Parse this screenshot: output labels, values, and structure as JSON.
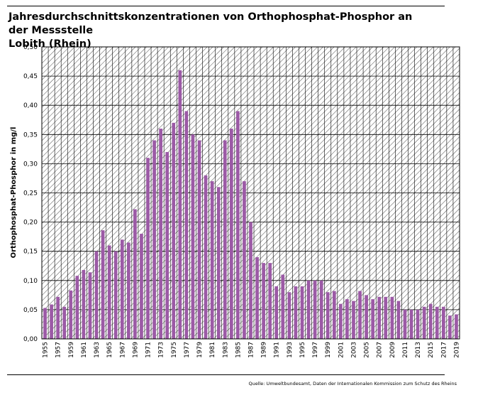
{
  "header": {
    "title_line1": "Jahresdurchschnittskonzentrationen von Orthophosphat-Phosphor an der Messstelle",
    "title_line2": "Lobith (Rhein)"
  },
  "footer": {
    "source": "Quelle: Umweltbundesamt, Daten der Internationalen Kommission zum Schutz des Rheins"
  },
  "colors": {
    "bar": "#9c5aa6",
    "hatch": "#000000",
    "frame": "#000000"
  },
  "chart_data": {
    "type": "bar",
    "ylabel": "Orthophosphat-Phosphor in mg/l",
    "ylim": [
      0,
      0.5
    ],
    "yticks": [
      "0,00",
      "0,05",
      "0,10",
      "0,15",
      "0,20",
      "0,25",
      "0,30",
      "0,35",
      "0,40",
      "0,45",
      "0,50"
    ],
    "categories": [
      1955,
      1956,
      1957,
      1958,
      1959,
      1960,
      1961,
      1962,
      1963,
      1964,
      1965,
      1966,
      1967,
      1968,
      1969,
      1970,
      1971,
      1972,
      1973,
      1974,
      1975,
      1976,
      1977,
      1978,
      1979,
      1980,
      1981,
      1982,
      1983,
      1984,
      1985,
      1986,
      1987,
      1988,
      1989,
      1990,
      1991,
      1992,
      1993,
      1994,
      1995,
      1996,
      1997,
      1998,
      1999,
      2000,
      2001,
      2002,
      2003,
      2004,
      2005,
      2006,
      2007,
      2008,
      2009,
      2010,
      2011,
      2012,
      2013,
      2014,
      2015,
      2016,
      2017,
      2018,
      2019
    ],
    "xtick_labels": [
      "1955",
      "1957",
      "1959",
      "1961",
      "1963",
      "1965",
      "1967",
      "1969",
      "1971",
      "1973",
      "1975",
      "1977",
      "1979",
      "1981",
      "1983",
      "1985",
      "1987",
      "1989",
      "1991",
      "1993",
      "1995",
      "1997",
      "1999",
      "2001",
      "2003",
      "2005",
      "2007",
      "2009",
      "2011",
      "2013",
      "2015",
      "2017",
      "2019"
    ],
    "values": [
      0.053,
      0.059,
      0.072,
      0.055,
      0.083,
      0.108,
      0.118,
      0.114,
      0.15,
      0.186,
      0.16,
      0.15,
      0.17,
      0.165,
      0.222,
      0.18,
      0.31,
      0.34,
      0.36,
      0.32,
      0.37,
      0.46,
      0.39,
      0.35,
      0.34,
      0.28,
      0.27,
      0.26,
      0.34,
      0.36,
      0.39,
      0.27,
      0.2,
      0.14,
      0.13,
      0.13,
      0.09,
      0.11,
      0.08,
      0.09,
      0.09,
      0.1,
      0.1,
      0.1,
      0.08,
      0.082,
      0.06,
      0.068,
      0.065,
      0.082,
      0.075,
      0.068,
      0.072,
      0.072,
      0.072,
      0.065,
      0.05,
      0.05,
      0.05,
      0.055,
      0.06,
      0.055,
      0.055,
      0.04,
      0.042
    ],
    "grid": "diagonal-hatch"
  }
}
